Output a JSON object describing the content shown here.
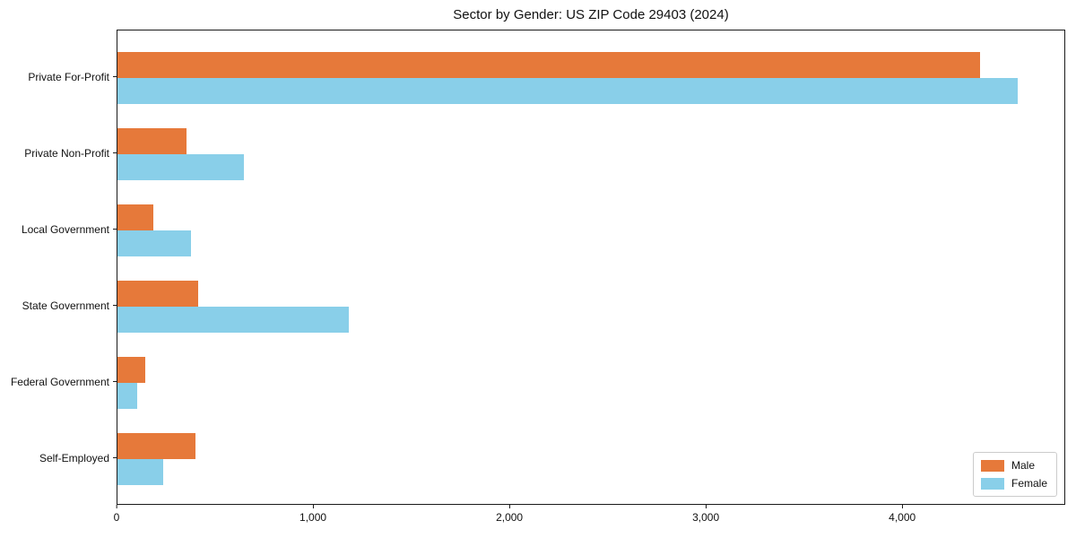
{
  "figure": {
    "background": "#ffffff",
    "border_color": "#1a1a1a"
  },
  "chart_data": {
    "type": "bar",
    "orientation": "horizontal",
    "title": "Sector by Gender: US ZIP Code 29403 (2024)",
    "categories": [
      "Private For-Profit",
      "Private Non-Profit",
      "Local Government",
      "State Government",
      "Federal Government",
      "Self-Employed"
    ],
    "series": [
      {
        "name": "Male",
        "color": "#E6793A",
        "values": [
          4400,
          350,
          185,
          410,
          140,
          400
        ]
      },
      {
        "name": "Female",
        "color": "#89CFE9",
        "values": [
          4590,
          645,
          375,
          1180,
          100,
          235
        ]
      }
    ],
    "xlabel": "",
    "ylabel": "",
    "xlim": [
      0,
      4830
    ],
    "xticks": {
      "values": [
        0,
        1000,
        2000,
        3000,
        4000
      ],
      "labels": [
        "0",
        "1,000",
        "2,000",
        "3,000",
        "4,000"
      ]
    },
    "grid": false,
    "legend": {
      "position": "lower-right",
      "entries": [
        "Male",
        "Female"
      ]
    }
  }
}
